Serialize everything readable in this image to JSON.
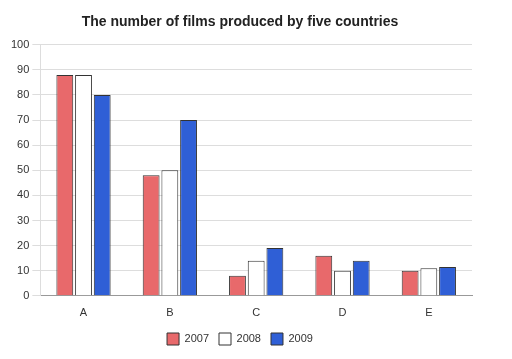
{
  "chart_data": {
    "type": "bar",
    "title": "The number of films produced by five countries",
    "categories": [
      "A",
      "B",
      "C",
      "D",
      "E"
    ],
    "series": [
      {
        "name": "2007",
        "color": "#e8696b",
        "values": [
          88,
          48,
          8,
          16,
          10
        ]
      },
      {
        "name": "2008",
        "color": "#ffffff",
        "values": [
          88,
          50,
          14,
          10,
          11
        ]
      },
      {
        "name": "2009",
        "color": "#2f5fd6",
        "values": [
          80,
          70,
          19,
          14,
          11.5
        ]
      }
    ],
    "ylim": [
      0,
      100
    ],
    "yticks": [
      0,
      10,
      20,
      30,
      40,
      50,
      60,
      70,
      80,
      90,
      100
    ],
    "grid": true,
    "legend": "bottom"
  }
}
